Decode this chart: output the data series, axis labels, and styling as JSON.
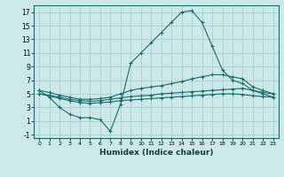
{
  "xlabel": "Humidex (Indice chaleur)",
  "background_color": "#cde8e8",
  "grid_color": "#a8d0d0",
  "line_color": "#1a6b6b",
  "xlim": [
    -0.5,
    23.5
  ],
  "ylim": [
    -1.5,
    18
  ],
  "yticks": [
    -1,
    1,
    3,
    5,
    7,
    9,
    11,
    13,
    15,
    17
  ],
  "xticks": [
    0,
    1,
    2,
    3,
    4,
    5,
    6,
    7,
    8,
    9,
    10,
    11,
    12,
    13,
    14,
    15,
    16,
    17,
    18,
    19,
    20,
    21,
    22,
    23
  ],
  "line1_x": [
    0,
    1,
    2,
    3,
    4,
    5,
    6,
    7,
    8,
    9,
    10,
    11,
    12,
    13,
    14,
    15,
    16,
    17,
    18,
    19,
    20,
    21,
    22,
    23
  ],
  "line1_y": [
    5.5,
    4.5,
    3.0,
    2.0,
    1.5,
    1.5,
    1.2,
    -0.5,
    3.5,
    9.5,
    11.0,
    12.5,
    14.0,
    15.5,
    17.0,
    17.2,
    15.5,
    12.0,
    8.5,
    7.0,
    6.5,
    5.5,
    5.0,
    4.5
  ],
  "line2_x": [
    0,
    1,
    2,
    3,
    4,
    5,
    6,
    7,
    8,
    9,
    10,
    11,
    12,
    13,
    14,
    15,
    16,
    17,
    18,
    19,
    20,
    21,
    22,
    23
  ],
  "line2_y": [
    5.5,
    5.2,
    4.8,
    4.5,
    4.2,
    4.2,
    4.3,
    4.5,
    5.0,
    5.5,
    5.8,
    6.0,
    6.2,
    6.5,
    6.8,
    7.2,
    7.5,
    7.8,
    7.8,
    7.5,
    7.2,
    6.0,
    5.5,
    5.0
  ],
  "line3_x": [
    0,
    1,
    2,
    3,
    4,
    5,
    6,
    7,
    8,
    9,
    10,
    11,
    12,
    13,
    14,
    15,
    16,
    17,
    18,
    19,
    20,
    21,
    22,
    23
  ],
  "line3_y": [
    5.0,
    4.8,
    4.5,
    4.2,
    4.0,
    3.9,
    4.0,
    4.2,
    4.4,
    4.6,
    4.7,
    4.8,
    5.0,
    5.1,
    5.2,
    5.3,
    5.4,
    5.5,
    5.6,
    5.7,
    5.8,
    5.5,
    5.2,
    5.0
  ],
  "line4_x": [
    0,
    1,
    2,
    3,
    4,
    5,
    6,
    7,
    8,
    9,
    10,
    11,
    12,
    13,
    14,
    15,
    16,
    17,
    18,
    19,
    20,
    21,
    22,
    23
  ],
  "line4_y": [
    5.0,
    4.7,
    4.3,
    4.0,
    3.7,
    3.6,
    3.7,
    3.8,
    4.0,
    4.1,
    4.2,
    4.3,
    4.4,
    4.5,
    4.6,
    4.7,
    4.8,
    4.9,
    5.0,
    5.0,
    4.9,
    4.7,
    4.6,
    4.5
  ]
}
